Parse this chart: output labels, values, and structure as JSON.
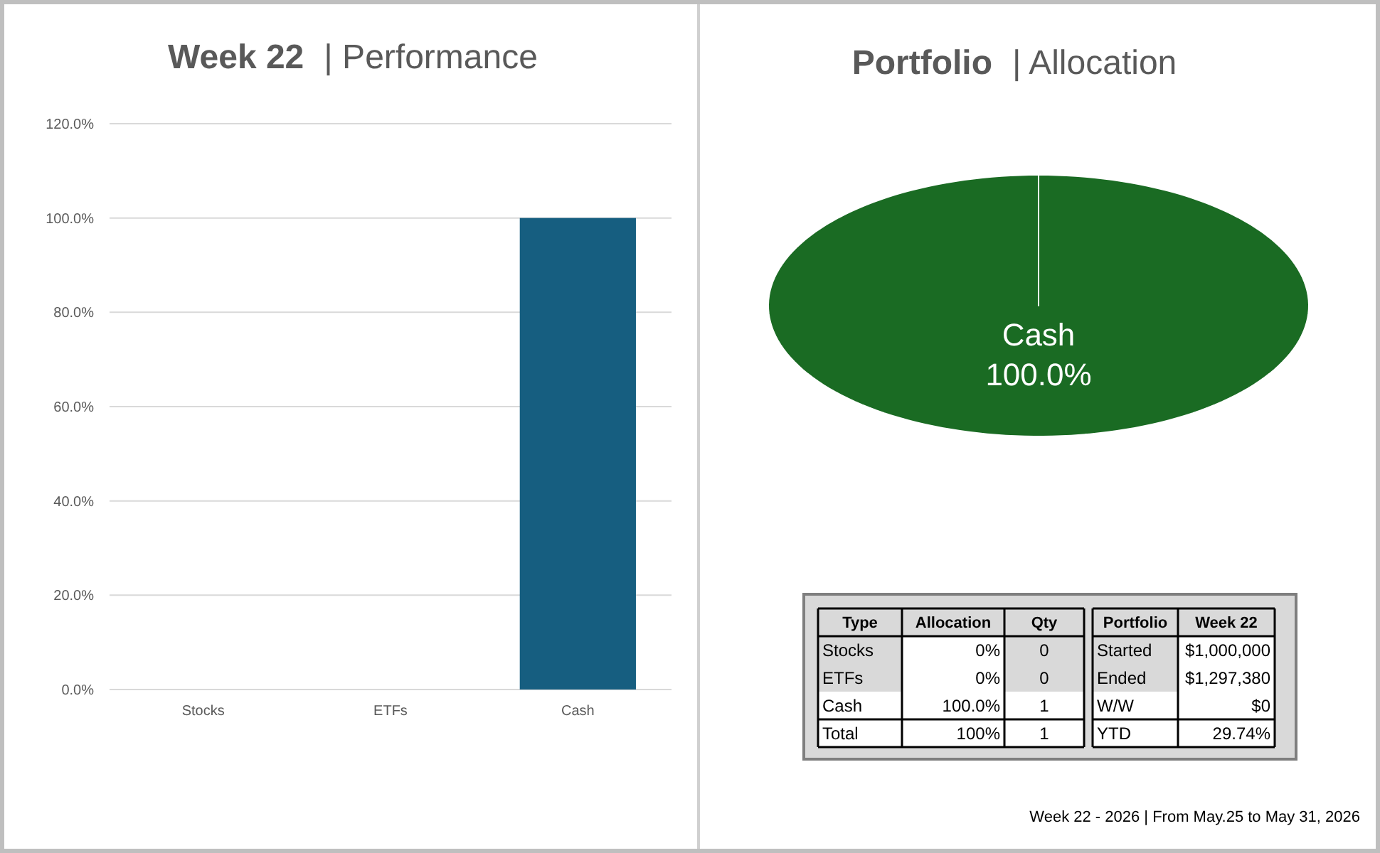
{
  "chart_data": [
    {
      "type": "bar",
      "title": "Week 22",
      "subtitle": "| Performance",
      "categories": [
        "Stocks",
        "ETFs",
        "Cash"
      ],
      "values": [
        0,
        0,
        100
      ],
      "color": "#165e80",
      "ylim": [
        0,
        120
      ],
      "yticks": [
        {
          "value": 0,
          "label": "0.0%"
        },
        {
          "value": 20,
          "label": "20.0%"
        },
        {
          "value": 40,
          "label": "40.0%"
        },
        {
          "value": 60,
          "label": "60.0%"
        },
        {
          "value": 80,
          "label": "80.0%"
        },
        {
          "value": 100,
          "label": "100.0%"
        },
        {
          "value": 120,
          "label": "120.0%"
        }
      ],
      "grid": "y"
    },
    {
      "type": "pie",
      "title": "Portfolio",
      "subtitle": "| Allocation",
      "categories": [
        "Cash"
      ],
      "values": [
        100
      ],
      "colors": [
        "#1a6b23"
      ],
      "value_labels": [
        "100.0%"
      ],
      "annotations": [
        "Week 22 - 2026 | From May.25 to May 31, 2026"
      ]
    },
    {
      "type": "other",
      "annotations": [
        "Type",
        "Allocation",
        "Qty",
        "Stocks",
        "0%",
        "0",
        "ETFs",
        "0%",
        "0",
        "Cash",
        "100.0%",
        "1",
        "Total",
        "100%",
        "1",
        "Portfolio",
        "Week 22",
        "Started",
        "$1,000,000",
        "Ended",
        "$1,297,380",
        "W/W",
        "$0",
        "YTD",
        "29.74%"
      ]
    }
  ]
}
